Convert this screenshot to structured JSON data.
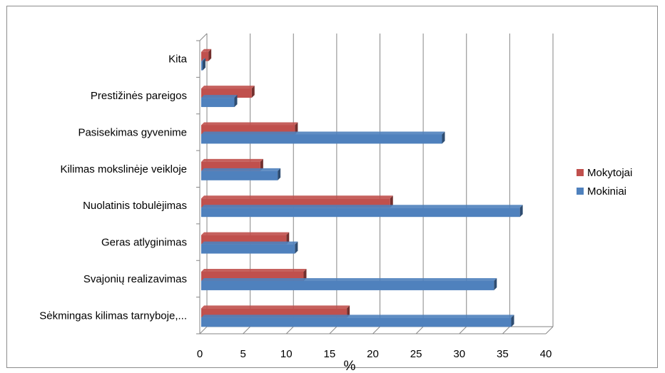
{
  "chart_data": {
    "type": "bar",
    "orientation": "horizontal",
    "style": "3d-clustered",
    "categories": [
      "Kita",
      "Prestižinės pareigos",
      "Pasisekimas gyvenime",
      "Kilimas mokslinėje veikloje",
      "Nuolatinis tobulėjimas",
      "Geras atlyginimas",
      "Svajonių realizavimas",
      "Sėkmingas kilimas tarnyboje,..."
    ],
    "series": [
      {
        "name": "Mokytojai",
        "color": "#c0504d",
        "values": [
          1,
          6,
          11,
          7,
          22,
          10,
          12,
          17
        ]
      },
      {
        "name": "Mokiniai",
        "color": "#4f81bd",
        "values": [
          0,
          4,
          28,
          9,
          37,
          11,
          34,
          36
        ]
      }
    ],
    "xlabel": "%",
    "ylabel": "",
    "xlim": [
      0,
      40
    ],
    "xticks": [
      0,
      5,
      10,
      15,
      20,
      25,
      30,
      35,
      40
    ],
    "grid": true,
    "legend_position": "right"
  }
}
